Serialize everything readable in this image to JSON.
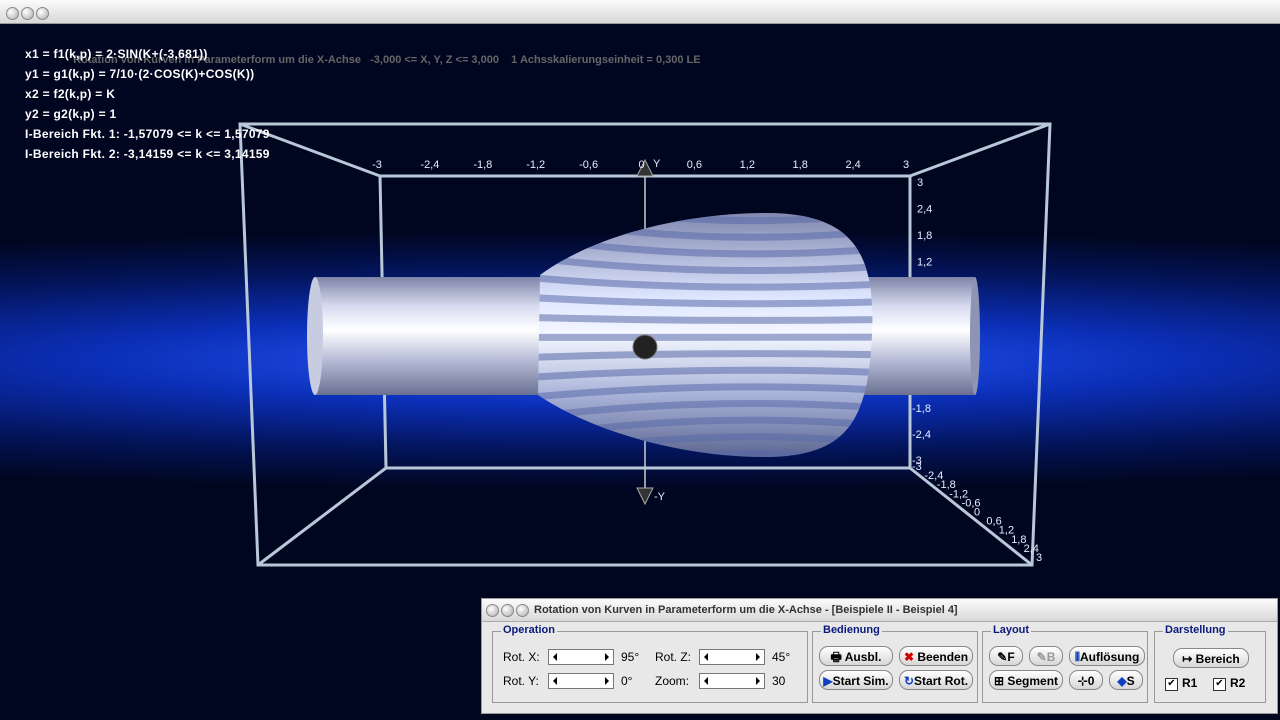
{
  "window": {
    "title": "Rotation von Kurven in Parameterform um die X-Achse   -3,000 <= X, Y, Z <= 3,000    1 Achsskalierungseinheit = 0,300 LE"
  },
  "formulas": [
    "x1 = f1(k,p) = 2·SIN(K+(-3,681))",
    "y1 = g1(k,p) = 7/10·(2·COS(K)+COS(K))",
    "x2 = f2(k,p) = K",
    "y2 = g2(k,p) = 1",
    "I-Bereich Fkt. 1: -1,57079 <= k <= 1,57079",
    "I-Bereich Fkt. 2: -3,14159 <= k <= 3,14159"
  ],
  "axes": {
    "x_labels": [
      "-3",
      "-2,4",
      "-1,8",
      "-1,2",
      "-0,6",
      "0",
      "0,6",
      "1,2",
      "1,8",
      "2,4",
      "3"
    ],
    "y_labels_top": [
      "3",
      "2,4",
      "1,8",
      "1,2"
    ],
    "y_labels_bottom": [
      "-1,8",
      "-2,4",
      "-3"
    ],
    "z_labels": [
      "-3",
      "-2,4",
      "-1,8",
      "-1,2",
      "-0,6",
      "0",
      "0,6",
      "1,2",
      "1,8",
      "2,4",
      "3"
    ],
    "y_pos": "Y",
    "y_neg": "-Y"
  },
  "panel": {
    "title": "Rotation von Kurven in Parameterform um die X-Achse - [Beispiele II - Beispiel 4]",
    "operation": {
      "title": "Operation",
      "rot_x": "Rot. X:",
      "rot_x_value": "95°",
      "rot_y": "Rot. Y:",
      "rot_y_value": "0°",
      "rot_z": "Rot. Z:",
      "rot_z_value": "45°",
      "zoom": "Zoom:",
      "zoom_value": "30"
    },
    "bedienung": {
      "title": "Bedienung",
      "ausbl": "Ausbl.",
      "beenden": "Beenden",
      "start_sim": "Start Sim.",
      "start_rot": "Start Rot."
    },
    "layout": {
      "title": "Layout",
      "f": "F",
      "b": "B",
      "aufloesung": "Auflösung",
      "segment": "Segment",
      "zero": "0",
      "s": "S"
    },
    "darstellung": {
      "title": "Darstellung",
      "bereich": "Bereich",
      "r1": "R1",
      "r2": "R2"
    }
  }
}
